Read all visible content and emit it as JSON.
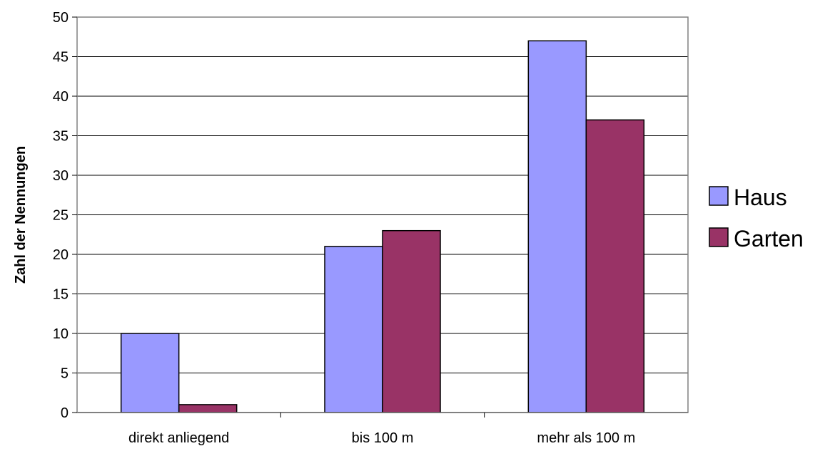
{
  "chart_data": {
    "type": "bar",
    "title": "",
    "xlabel": "",
    "ylabel": "Zahl der Nennungen",
    "ylim": [
      0,
      50
    ],
    "yticks": [
      0,
      5,
      10,
      15,
      20,
      25,
      30,
      35,
      40,
      45,
      50
    ],
    "categories": [
      "direkt anliegend",
      "bis 100 m",
      "mehr als 100 m"
    ],
    "series": [
      {
        "name": "Haus",
        "values": [
          10,
          21,
          47
        ],
        "color": "#9999ff"
      },
      {
        "name": "Garten",
        "values": [
          1,
          23,
          37
        ],
        "color": "#993366"
      }
    ],
    "grid": true,
    "legend": "right"
  }
}
